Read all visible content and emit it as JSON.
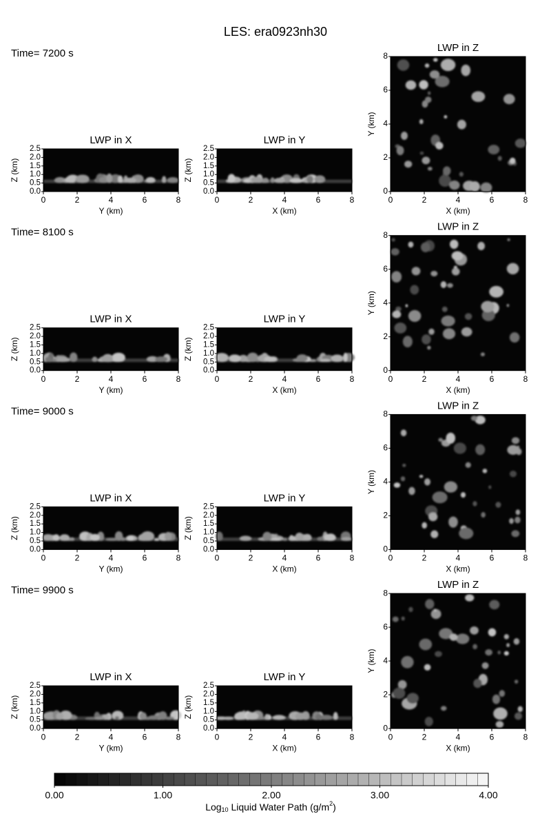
{
  "title": "LES: era0923nh30",
  "rows": [
    {
      "time": "Time= 7200 s",
      "panels": [
        {
          "title": "LWP in X",
          "xlabel": "Y (km)",
          "ylabel": "Z (km)"
        },
        {
          "title": "LWP in Y",
          "xlabel": "X (km)",
          "ylabel": "Z (km)"
        },
        {
          "title": "LWP in Z",
          "xlabel": "X (km)",
          "ylabel": "Y (km)"
        }
      ]
    },
    {
      "time": "Time= 8100 s",
      "panels": [
        {
          "title": "LWP in X",
          "xlabel": "Y (km)",
          "ylabel": "Z (km)"
        },
        {
          "title": "LWP in Y",
          "xlabel": "X (km)",
          "ylabel": "Z (km)"
        },
        {
          "title": "LWP in Z",
          "xlabel": "X (km)",
          "ylabel": "Y (km)"
        }
      ]
    },
    {
      "time": "Time= 9000 s",
      "panels": [
        {
          "title": "LWP in X",
          "xlabel": "Y (km)",
          "ylabel": "Z (km)"
        },
        {
          "title": "LWP in Y",
          "xlabel": "X (km)",
          "ylabel": "Z (km)"
        },
        {
          "title": "LWP in Z",
          "xlabel": "X (km)",
          "ylabel": "Y (km)"
        }
      ]
    },
    {
      "time": "Time= 9900 s",
      "panels": [
        {
          "title": "LWP in X",
          "xlabel": "Y (km)",
          "ylabel": "Z (km)"
        },
        {
          "title": "LWP in Y",
          "xlabel": "X (km)",
          "ylabel": "Z (km)"
        },
        {
          "title": "LWP in Z",
          "xlabel": "X (km)",
          "ylabel": "Y (km)"
        }
      ]
    }
  ],
  "axes": {
    "horizontal": {
      "lim": [
        0,
        8
      ],
      "ticks": [
        0,
        2,
        4,
        6,
        8
      ]
    },
    "height": {
      "lim": [
        0,
        2.5
      ],
      "ticks": [
        {
          "value": 0,
          "label": "0.0"
        },
        {
          "value": 0.5,
          "label": "0.5"
        },
        {
          "value": 1,
          "label": "1.0"
        },
        {
          "value": 1.5,
          "label": "1.5"
        },
        {
          "value": 2,
          "label": "2.0"
        },
        {
          "value": 2.5,
          "label": "2.5"
        }
      ]
    },
    "plan": {
      "lim": [
        0,
        8
      ],
      "ticks": [
        0,
        2,
        4,
        6,
        8
      ]
    }
  },
  "colorbar": {
    "lim": [
      0,
      4
    ],
    "steps": 40,
    "ticks": [
      {
        "value": 0,
        "label": "0.00"
      },
      {
        "value": 1,
        "label": "1.00"
      },
      {
        "value": 2,
        "label": "2.00"
      },
      {
        "value": 3,
        "label": "3.00"
      },
      {
        "value": 4,
        "label": "4.00"
      }
    ],
    "label": {
      "pre": "Log",
      "sub": "10",
      "mid": " Liquid Water Path (g/m",
      "sup": "2",
      "post": ")"
    }
  }
}
